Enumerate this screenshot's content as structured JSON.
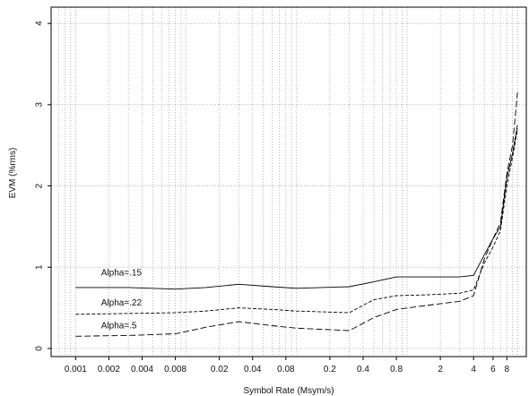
{
  "chart_data": {
    "type": "line",
    "xlabel": "Symbol Rate (Msym/s)",
    "ylabel": "EVM (%rms)",
    "x_scale": "log",
    "xlim": [
      0.0006,
      12
    ],
    "ylim": [
      -0.1,
      4.2
    ],
    "x_ticks": [
      {
        "value": 0.001,
        "label": "0.001"
      },
      {
        "value": 0.002,
        "label": "0.002"
      },
      {
        "value": 0.004,
        "label": "0.004"
      },
      {
        "value": 0.008,
        "label": "0.008"
      },
      {
        "value": 0.02,
        "label": "0.02"
      },
      {
        "value": 0.04,
        "label": "0.04"
      },
      {
        "value": 0.08,
        "label": "0.08"
      },
      {
        "value": 0.2,
        "label": "0.2"
      },
      {
        "value": 0.4,
        "label": "0.4"
      },
      {
        "value": 0.8,
        "label": "0.8"
      },
      {
        "value": 2,
        "label": "2"
      },
      {
        "value": 4,
        "label": "4"
      },
      {
        "value": 6,
        "label": "6"
      },
      {
        "value": 8,
        "label": "8"
      }
    ],
    "y_ticks": [
      {
        "value": 0,
        "label": "0"
      },
      {
        "value": 1,
        "label": "1"
      },
      {
        "value": 2,
        "label": "2"
      },
      {
        "value": 3,
        "label": "3"
      },
      {
        "value": 4,
        "label": "4"
      }
    ],
    "grid": true,
    "series": [
      {
        "name": "Alpha=.15",
        "dash": "solid",
        "x": [
          0.001,
          0.003,
          0.008,
          0.015,
          0.03,
          0.06,
          0.1,
          0.3,
          0.5,
          0.8,
          1.5,
          3,
          4,
          5,
          6,
          7,
          8,
          9,
          10
        ],
        "y": [
          0.75,
          0.75,
          0.73,
          0.75,
          0.79,
          0.76,
          0.74,
          0.76,
          0.82,
          0.88,
          0.88,
          0.88,
          0.9,
          1.15,
          1.35,
          1.5,
          2.1,
          2.4,
          2.75
        ]
      },
      {
        "name": "Alpha=.22",
        "dash": "dashed",
        "x": [
          0.001,
          0.003,
          0.008,
          0.015,
          0.03,
          0.06,
          0.1,
          0.3,
          0.5,
          0.8,
          1.5,
          3,
          4,
          5,
          6,
          7,
          8,
          9,
          10
        ],
        "y": [
          0.42,
          0.43,
          0.44,
          0.46,
          0.5,
          0.48,
          0.46,
          0.44,
          0.6,
          0.65,
          0.66,
          0.68,
          0.72,
          1.05,
          1.25,
          1.45,
          2.0,
          2.35,
          2.7
        ]
      },
      {
        "name": "Alpha=.5",
        "dash": "longdash",
        "x": [
          0.001,
          0.003,
          0.008,
          0.015,
          0.03,
          0.06,
          0.1,
          0.3,
          0.5,
          0.8,
          1.5,
          3,
          4,
          5,
          6,
          7,
          8,
          9,
          10
        ],
        "y": [
          0.15,
          0.16,
          0.18,
          0.26,
          0.33,
          0.28,
          0.25,
          0.22,
          0.38,
          0.48,
          0.53,
          0.58,
          0.65,
          1.1,
          1.35,
          1.55,
          2.15,
          2.5,
          3.15
        ]
      }
    ],
    "labels": [
      {
        "text": "Alpha=.15",
        "x": 0.0017,
        "y": 0.9
      },
      {
        "text": "Alpha=.22",
        "x": 0.0017,
        "y": 0.53
      },
      {
        "text": "Alpha=.5",
        "x": 0.0017,
        "y": 0.25
      }
    ]
  }
}
